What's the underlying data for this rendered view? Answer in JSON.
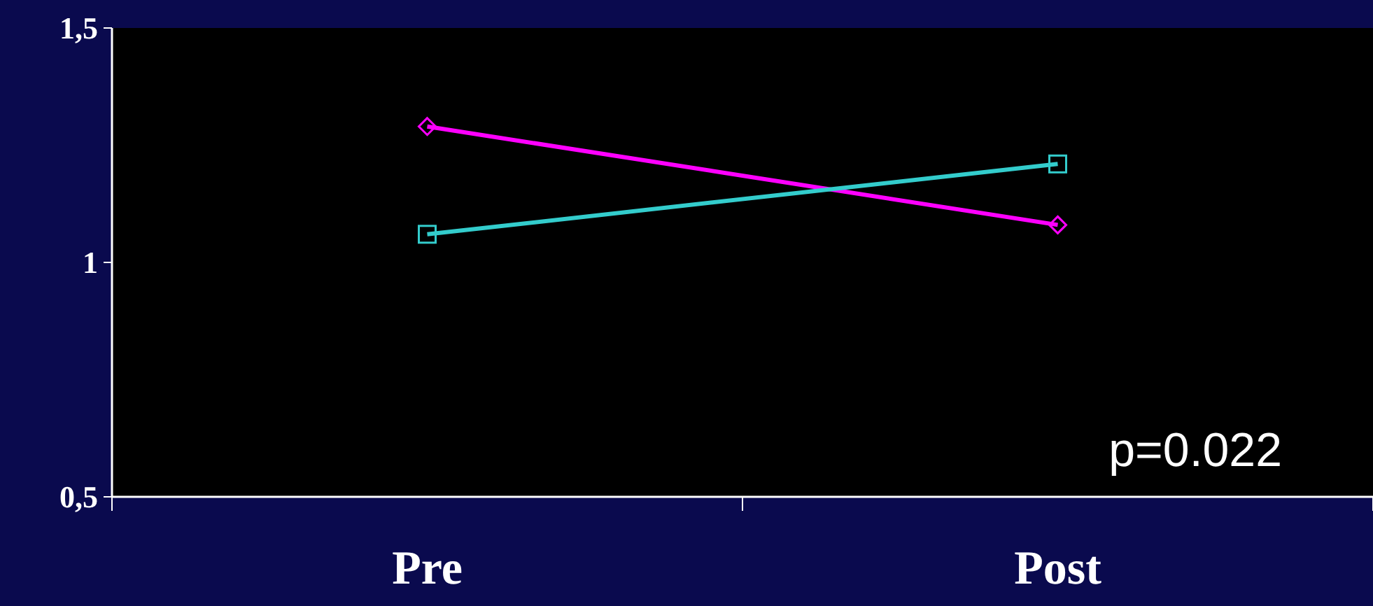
{
  "chart_data": {
    "type": "line",
    "categories": [
      "Pre",
      "Post"
    ],
    "series": [
      {
        "color": "#ff00ff",
        "marker": "diamond",
        "values": [
          1.29,
          1.08
        ]
      },
      {
        "color": "#33cccc",
        "marker": "square",
        "values": [
          1.06,
          1.21
        ]
      }
    ],
    "ylim": [
      0.5,
      1.5
    ],
    "yticks": [
      {
        "value": 0.5,
        "label": "0,5"
      },
      1,
      {
        "value": 1.5,
        "label": "1,5"
      }
    ],
    "annotations": [
      "p=0.022"
    ]
  }
}
